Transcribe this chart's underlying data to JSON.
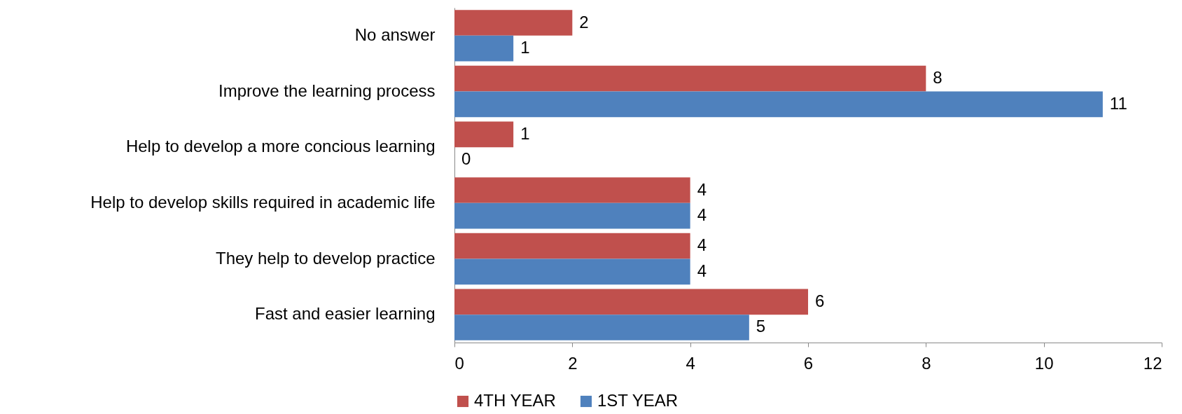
{
  "chart_data": {
    "type": "bar",
    "orientation": "horizontal",
    "categories": [
      "No answer",
      "Improve the learning process",
      "Help to develop a more concious learning",
      "Help to develop skills required in academic life",
      "They help to develop practice",
      "Fast and easier learning"
    ],
    "series": [
      {
        "name": "4TH YEAR",
        "color": "#c0504d",
        "values": [
          2,
          8,
          1,
          4,
          4,
          6
        ]
      },
      {
        "name": "1ST YEAR",
        "color": "#4f81bd",
        "values": [
          1,
          11,
          0,
          4,
          4,
          5
        ]
      }
    ],
    "xlim": [
      0,
      12
    ],
    "xticks": [
      0,
      2,
      4,
      6,
      8,
      10,
      12
    ],
    "data_labels": true,
    "grid": false,
    "legend": "bottom"
  }
}
